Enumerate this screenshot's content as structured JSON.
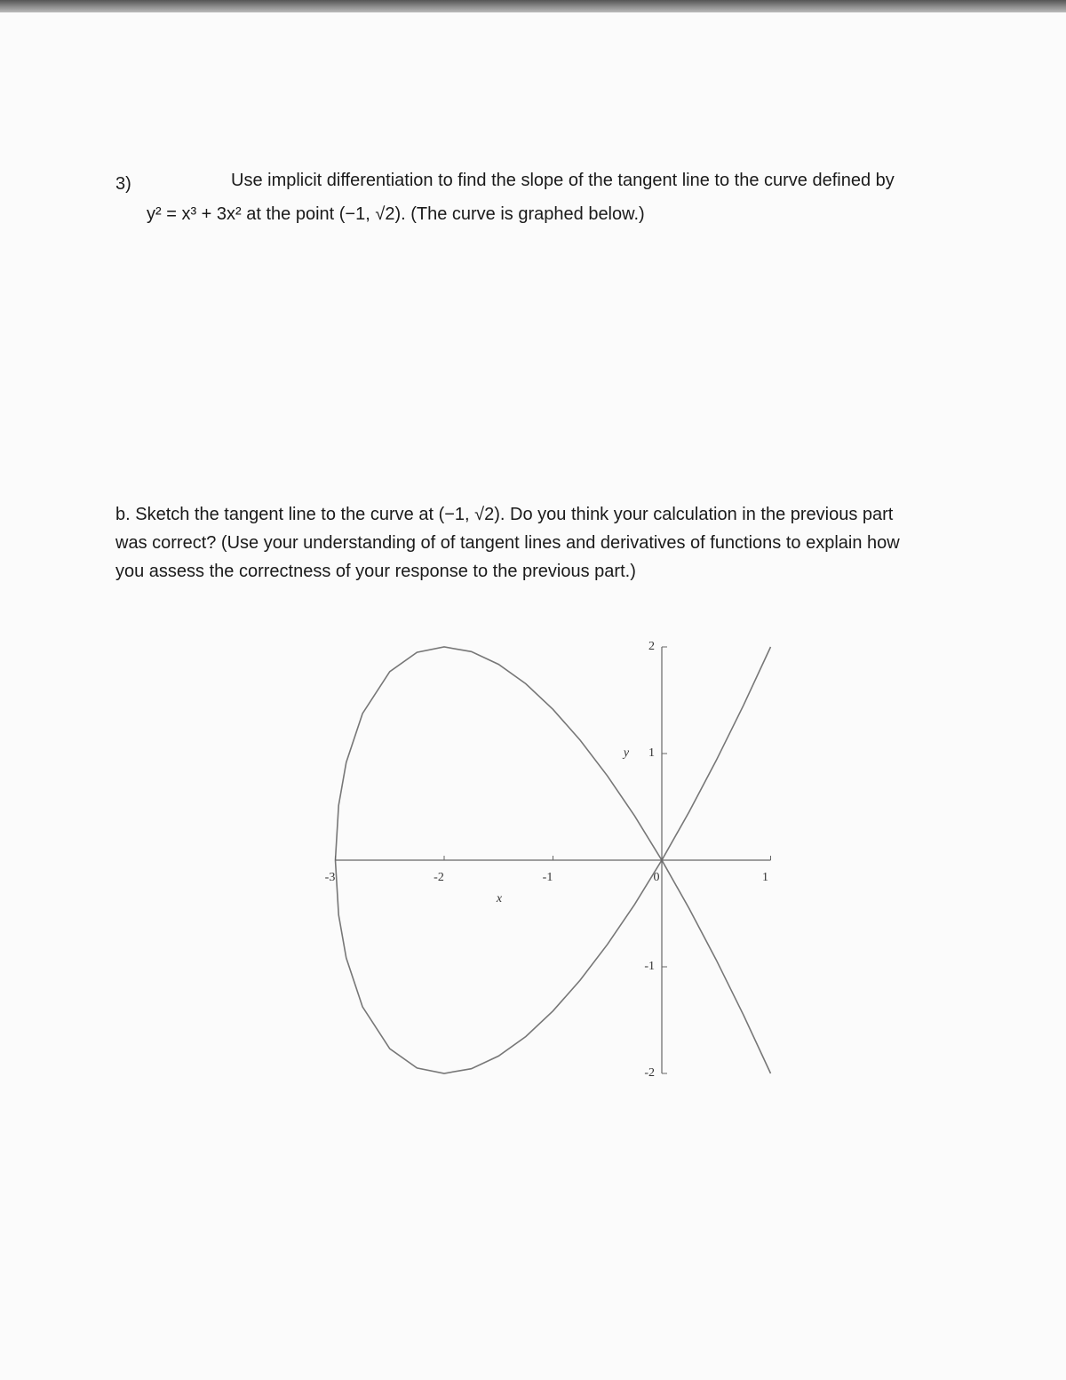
{
  "problem": {
    "number": "3)",
    "line1": "Use implicit differentiation to find the slope of the tangent line to the curve defined by",
    "line2": "y² = x³ + 3x² at the point (−1, √2). (The curve is graphed below.)"
  },
  "part_b": {
    "line1": "b. Sketch the tangent line to the curve at (−1, √2). Do you think your calculation in the previous part",
    "line2": "was correct? (Use your understanding of of tangent lines and derivatives of functions to explain how",
    "line3": "you assess the correctness of your response to the previous part.)"
  },
  "graph": {
    "type": "line",
    "xlabel": "x",
    "ylabel": "y",
    "xlim": [
      -3,
      1
    ],
    "ylim": [
      -2,
      2
    ],
    "xticks": [
      -3,
      -2,
      -1,
      0,
      1
    ],
    "yticks": [
      -2,
      -1,
      1,
      2
    ]
  }
}
